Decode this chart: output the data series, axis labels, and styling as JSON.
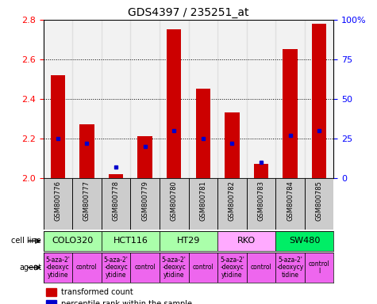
{
  "title": "GDS4397 / 235251_at",
  "samples": [
    "GSM800776",
    "GSM800777",
    "GSM800778",
    "GSM800779",
    "GSM800780",
    "GSM800781",
    "GSM800782",
    "GSM800783",
    "GSM800784",
    "GSM800785"
  ],
  "transformed_counts": [
    2.52,
    2.27,
    2.02,
    2.21,
    2.75,
    2.45,
    2.33,
    2.07,
    2.65,
    2.78
  ],
  "percentile_ranks": [
    25,
    22,
    7,
    20,
    30,
    25,
    22,
    10,
    27,
    30
  ],
  "cell_lines": [
    {
      "name": "COLO320",
      "span": [
        0,
        2
      ],
      "color": "#aaffaa"
    },
    {
      "name": "HCT116",
      "span": [
        2,
        4
      ],
      "color": "#aaffaa"
    },
    {
      "name": "HT29",
      "span": [
        4,
        6
      ],
      "color": "#aaffaa"
    },
    {
      "name": "RKO",
      "span": [
        6,
        8
      ],
      "color": "#ffaaff"
    },
    {
      "name": "SW480",
      "span": [
        8,
        10
      ],
      "color": "#00ee66"
    }
  ],
  "agents": [
    {
      "name": "5-aza-2'\n-deoxyc\nytidine",
      "span": [
        0,
        1
      ]
    },
    {
      "name": "control",
      "span": [
        1,
        2
      ]
    },
    {
      "name": "5-aza-2'\n-deoxyc\nytidine",
      "span": [
        2,
        3
      ]
    },
    {
      "name": "control",
      "span": [
        3,
        4
      ]
    },
    {
      "name": "5-aza-2'\n-deoxyc\nytidine",
      "span": [
        4,
        5
      ]
    },
    {
      "name": "control",
      "span": [
        5,
        6
      ]
    },
    {
      "name": "5-aza-2'\n-deoxyc\nytidine",
      "span": [
        6,
        7
      ]
    },
    {
      "name": "control",
      "span": [
        7,
        8
      ]
    },
    {
      "name": "5-aza-2'\n-deoxycy\ntidine",
      "span": [
        8,
        9
      ]
    },
    {
      "name": "control\nl",
      "span": [
        9,
        10
      ]
    }
  ],
  "agent_color": "#ee66ee",
  "ylim": [
    2.0,
    2.8
  ],
  "yticks_left": [
    2.0,
    2.2,
    2.4,
    2.6,
    2.8
  ],
  "yticks_right": [
    0,
    25,
    50,
    75,
    100
  ],
  "bar_color": "#cc0000",
  "dot_color": "#0000cc",
  "bar_width": 0.5,
  "sample_bg_color": "#cccccc",
  "row_label_fontsize": 7,
  "title_fontsize": 10,
  "tick_fontsize": 8,
  "sample_fontsize": 6,
  "cellline_fontsize": 8,
  "agent_fontsize": 5.5
}
